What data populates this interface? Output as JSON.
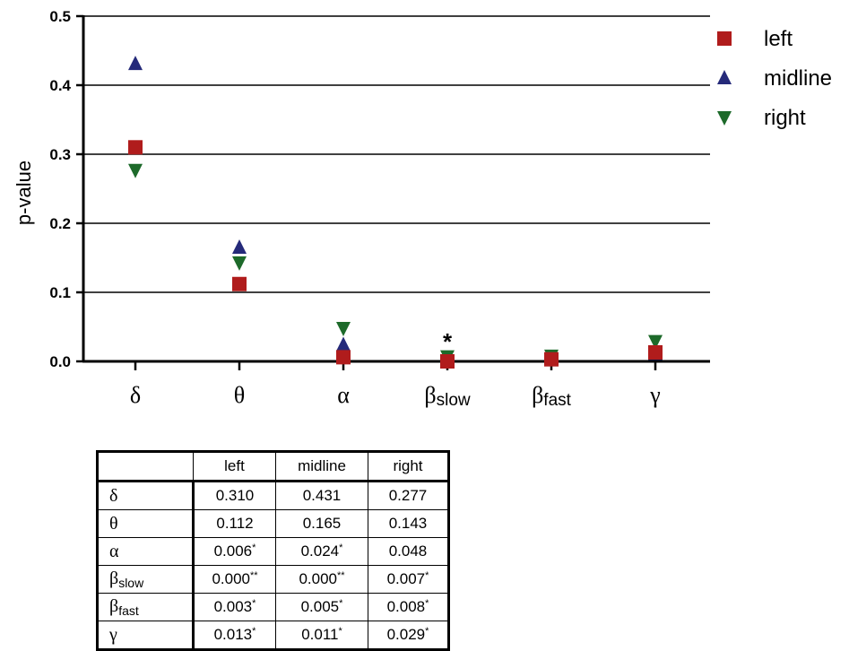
{
  "chart_data": {
    "type": "scatter",
    "ylabel": "p-value",
    "ylim": [
      0,
      0.5
    ],
    "yticks": [
      "0.0",
      "0.1",
      "0.2",
      "0.3",
      "0.4",
      "0.5"
    ],
    "grid": "horizontal",
    "legend_position": "top-right",
    "categories": [
      {
        "main": "δ",
        "sub": ""
      },
      {
        "main": "θ",
        "sub": ""
      },
      {
        "main": "α",
        "sub": ""
      },
      {
        "main": "β",
        "sub": "slow"
      },
      {
        "main": "β",
        "sub": "fast"
      },
      {
        "main": "γ",
        "sub": ""
      }
    ],
    "series": [
      {
        "name": "left",
        "marker": "square",
        "color": "#b01c1c",
        "values": [
          0.31,
          0.112,
          0.006,
          0.0,
          0.003,
          0.013
        ]
      },
      {
        "name": "midline",
        "marker": "triangle-up",
        "color": "#252a7a",
        "values": [
          0.431,
          0.165,
          0.024,
          0.0,
          0.005,
          0.011
        ]
      },
      {
        "name": "right",
        "marker": "triangle-down",
        "color": "#1d6a2a",
        "values": [
          0.277,
          0.143,
          0.048,
          0.007,
          0.008,
          0.029
        ]
      }
    ],
    "annotations": [
      {
        "category_index": 3,
        "text": "*"
      }
    ]
  },
  "table": {
    "headers": [
      "left",
      "midline",
      "right"
    ],
    "rows": [
      {
        "label": "δ",
        "label_sub": "",
        "cells": [
          {
            "v": "0.310",
            "s": ""
          },
          {
            "v": "0.431",
            "s": ""
          },
          {
            "v": "0.277",
            "s": ""
          }
        ]
      },
      {
        "label": "θ",
        "label_sub": "",
        "cells": [
          {
            "v": "0.112",
            "s": ""
          },
          {
            "v": "0.165",
            "s": ""
          },
          {
            "v": "0.143",
            "s": ""
          }
        ]
      },
      {
        "label": "α",
        "label_sub": "",
        "cells": [
          {
            "v": "0.006",
            "s": "*"
          },
          {
            "v": "0.024",
            "s": "*"
          },
          {
            "v": "0.048",
            "s": ""
          }
        ]
      },
      {
        "label": "β",
        "label_sub": "slow",
        "cells": [
          {
            "v": "0.000",
            "s": "**"
          },
          {
            "v": "0.000",
            "s": "**"
          },
          {
            "v": "0.007",
            "s": "*"
          }
        ]
      },
      {
        "label": "β",
        "label_sub": "fast",
        "cells": [
          {
            "v": "0.003",
            "s": "*"
          },
          {
            "v": "0.005",
            "s": "*"
          },
          {
            "v": "0.008",
            "s": "*"
          }
        ]
      },
      {
        "label": "γ",
        "label_sub": "",
        "cells": [
          {
            "v": "0.013",
            "s": "*"
          },
          {
            "v": "0.011",
            "s": "*"
          },
          {
            "v": "0.029",
            "s": "*"
          }
        ]
      }
    ]
  }
}
